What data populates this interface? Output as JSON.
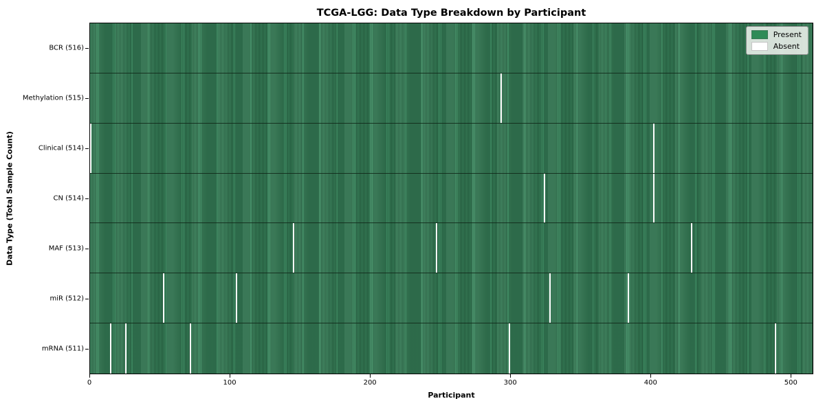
{
  "title": "TCGA-LGG: Data Type Breakdown by Participant",
  "xlabel": "Participant",
  "ylabel": "Data Type (Total Sample Count)",
  "colors": {
    "present": "#2f8b57",
    "present_stripe_light": "#419066",
    "present_stripe_dark": "#1f5236",
    "absent": "#ffffff",
    "legend_background": "#e8ede8"
  },
  "chart_data": {
    "type": "heatmap",
    "title": "TCGA-LGG: Data Type Breakdown by Participant",
    "xlabel": "Participant",
    "ylabel": "Data Type (Total Sample Count)",
    "grid": false,
    "legend_position": "upper right",
    "n_participants": 516,
    "x_ticks": [
      0,
      100,
      200,
      300,
      400,
      500
    ],
    "rows": [
      {
        "label": "BCR (516)",
        "data_type": "BCR",
        "sample_count": 516,
        "absent_participants": []
      },
      {
        "label": "Methylation (515)",
        "data_type": "Methylation",
        "sample_count": 515,
        "absent_participants": [
          293
        ]
      },
      {
        "label": "Clinical (514)",
        "data_type": "Clinical",
        "sample_count": 514,
        "absent_participants": [
          0,
          402
        ]
      },
      {
        "label": "CN (514)",
        "data_type": "CN",
        "sample_count": 514,
        "absent_participants": [
          324,
          402
        ]
      },
      {
        "label": "MAF (513)",
        "data_type": "MAF",
        "sample_count": 513,
        "absent_participants": [
          145,
          247,
          429
        ]
      },
      {
        "label": "miR (512)",
        "data_type": "miR",
        "sample_count": 512,
        "absent_participants": [
          52,
          104,
          328,
          384
        ]
      },
      {
        "label": "mRNA (511)",
        "data_type": "mRNA",
        "sample_count": 511,
        "absent_participants": [
          14,
          25,
          71,
          299,
          489
        ]
      }
    ],
    "legend": [
      {
        "label": "Present",
        "color": "#2f8b57"
      },
      {
        "label": "Absent",
        "color": "#ffffff"
      }
    ]
  }
}
